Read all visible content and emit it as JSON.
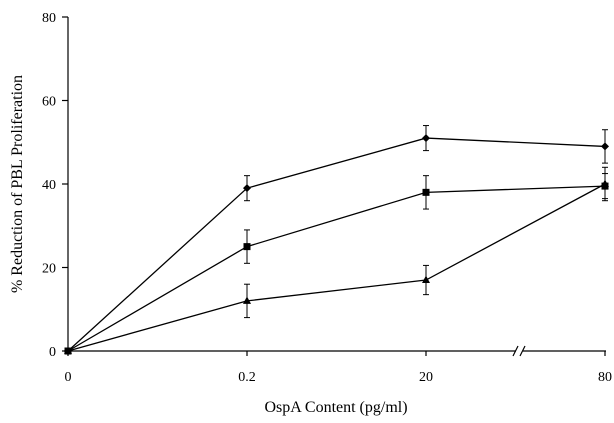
{
  "chart_data": {
    "type": "line",
    "title": "",
    "xlabel": "OspA  Content (pg/ml)",
    "ylabel": "% Reduction of PBL Proliferation",
    "categories": [
      "0",
      "0.2",
      "20",
      "80"
    ],
    "ylim": [
      0,
      80
    ],
    "yticks": [
      0,
      20,
      40,
      60,
      80
    ],
    "grid": false,
    "legend": "none",
    "axis_break": "between 20 and 80 on x-axis",
    "series": [
      {
        "marker": "diamond",
        "values": [
          0,
          39,
          51,
          49
        ],
        "errors": [
          0,
          3,
          3,
          4
        ]
      },
      {
        "marker": "square",
        "values": [
          0,
          25,
          38,
          39.5
        ],
        "errors": [
          0,
          4,
          4,
          3
        ]
      },
      {
        "marker": "triangle",
        "values": [
          0,
          12,
          17,
          40
        ],
        "errors": [
          0,
          4,
          3.5,
          4
        ]
      }
    ]
  }
}
